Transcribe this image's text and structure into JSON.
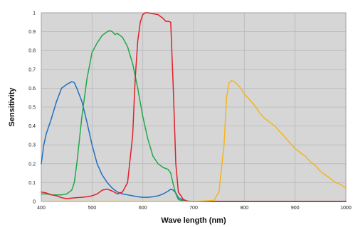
{
  "chart_data": {
    "type": "line",
    "xlabel": "Wave length (nm)",
    "ylabel": "Sensitivity",
    "xlim": [
      400,
      1000
    ],
    "ylim": [
      0,
      1
    ],
    "x_ticks": [
      400,
      500,
      600,
      700,
      800,
      900,
      1000
    ],
    "y_ticks": [
      0,
      0.1,
      0.2,
      0.3,
      0.4,
      0.5,
      0.6,
      0.7,
      0.8,
      0.9,
      1
    ],
    "x_tick_labels": [
      "400",
      "500",
      "600",
      "700",
      "800",
      "900",
      "1000"
    ],
    "y_tick_labels": [
      "0",
      "0.1",
      "0.2",
      "0.3",
      "0.4",
      "0.5",
      "0.6",
      "0.7",
      "0.8",
      "0.9",
      "1"
    ],
    "grid": true,
    "plot_background": "#d6d6d6",
    "grid_color": "#b9b9b9",
    "series": [
      {
        "color": "#1f6fc0",
        "x": [
          400,
          405,
          410,
          420,
          430,
          440,
          450,
          460,
          465,
          470,
          480,
          490,
          500,
          510,
          520,
          530,
          540,
          550,
          560,
          570,
          580,
          590,
          600,
          610,
          620,
          630,
          640,
          650,
          655,
          660,
          665,
          670,
          680,
          690,
          700,
          1000
        ],
        "y": [
          0.2,
          0.3,
          0.36,
          0.44,
          0.53,
          0.6,
          0.62,
          0.635,
          0.63,
          0.6,
          0.53,
          0.42,
          0.3,
          0.2,
          0.14,
          0.1,
          0.07,
          0.05,
          0.04,
          0.035,
          0.03,
          0.025,
          0.022,
          0.022,
          0.025,
          0.03,
          0.04,
          0.055,
          0.065,
          0.06,
          0.045,
          0.02,
          0.006,
          0.002,
          0.0,
          0.0
        ]
      },
      {
        "color": "#20a848",
        "x": [
          400,
          410,
          420,
          440,
          450,
          460,
          465,
          470,
          480,
          490,
          500,
          510,
          520,
          530,
          535,
          540,
          545,
          550,
          560,
          570,
          580,
          590,
          600,
          610,
          620,
          630,
          640,
          650,
          655,
          660,
          665,
          670,
          680,
          690,
          700,
          1000
        ],
        "y": [
          0.04,
          0.04,
          0.035,
          0.035,
          0.04,
          0.06,
          0.1,
          0.2,
          0.45,
          0.65,
          0.79,
          0.84,
          0.88,
          0.9,
          0.905,
          0.9,
          0.885,
          0.89,
          0.87,
          0.82,
          0.73,
          0.6,
          0.45,
          0.33,
          0.24,
          0.2,
          0.18,
          0.17,
          0.15,
          0.09,
          0.04,
          0.01,
          0.002,
          0.0,
          0.0,
          0.0
        ]
      },
      {
        "color": "#e0202a",
        "x": [
          400,
          410,
          420,
          430,
          440,
          450,
          460,
          470,
          480,
          490,
          500,
          510,
          520,
          530,
          540,
          550,
          560,
          570,
          580,
          585,
          590,
          595,
          600,
          605,
          610,
          620,
          630,
          640,
          645,
          650,
          655,
          660,
          665,
          670,
          680,
          690,
          700,
          1000
        ],
        "y": [
          0.05,
          0.045,
          0.035,
          0.03,
          0.02,
          0.015,
          0.018,
          0.02,
          0.022,
          0.025,
          0.03,
          0.04,
          0.06,
          0.065,
          0.055,
          0.04,
          0.05,
          0.1,
          0.35,
          0.65,
          0.85,
          0.95,
          0.99,
          1.0,
          1.0,
          0.995,
          0.99,
          0.97,
          0.955,
          0.955,
          0.95,
          0.6,
          0.2,
          0.05,
          0.01,
          0.0,
          0.0,
          0.0
        ]
      },
      {
        "color": "#f5b51c",
        "x": [
          400,
          700,
          740,
          750,
          760,
          765,
          770,
          775,
          780,
          790,
          800,
          810,
          820,
          830,
          840,
          850,
          860,
          870,
          880,
          890,
          900,
          910,
          920,
          930,
          940,
          950,
          960,
          970,
          980,
          990,
          1000
        ],
        "y": [
          0.0,
          0.0,
          0.005,
          0.05,
          0.3,
          0.55,
          0.63,
          0.64,
          0.635,
          0.61,
          0.57,
          0.54,
          0.51,
          0.47,
          0.44,
          0.42,
          0.4,
          0.37,
          0.34,
          0.31,
          0.28,
          0.26,
          0.24,
          0.21,
          0.19,
          0.16,
          0.14,
          0.12,
          0.1,
          0.09,
          0.07
        ]
      }
    ]
  }
}
